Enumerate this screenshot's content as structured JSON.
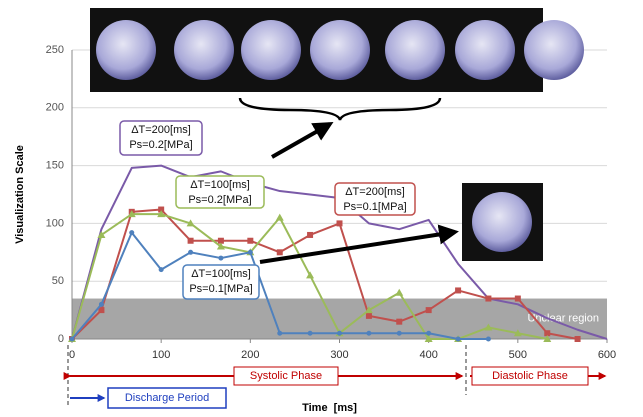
{
  "chart_data": {
    "type": "line",
    "xlabel": "Time  [ms]",
    "ylabel": "Visualization Scale",
    "xlim": [
      0,
      600
    ],
    "xticks": [
      0,
      100,
      200,
      300,
      400,
      500,
      600
    ],
    "ylim": [
      0,
      250
    ],
    "yticks": [
      0,
      50,
      100,
      150,
      200,
      250
    ],
    "grid": true,
    "x": [
      0,
      33,
      67,
      100,
      133,
      167,
      200,
      233,
      267,
      300,
      333,
      367,
      400,
      433,
      467,
      500,
      533,
      567,
      600
    ],
    "series": [
      {
        "labels": [
          "ΔT=200[ms]",
          "Ps=0.2[MPa]"
        ],
        "color": "#7a5aa8",
        "marker": "none",
        "values": [
          0,
          95,
          148,
          150,
          140,
          145,
          135,
          128,
          125,
          122,
          100,
          95,
          103,
          65,
          35,
          30,
          18,
          8,
          0
        ]
      },
      {
        "labels": [
          "ΔT=200[ms]",
          "Ps=0.1[MPa]"
        ],
        "color": "#c0504d",
        "marker": "square",
        "values": [
          0,
          25,
          110,
          112,
          85,
          85,
          85,
          75,
          90,
          100,
          20,
          15,
          25,
          42,
          35,
          35,
          5,
          0,
          null
        ]
      },
      {
        "labels": [
          "ΔT=100[ms]",
          "Ps=0.2[MPa]"
        ],
        "color": "#9bbb59",
        "marker": "triangle",
        "values": [
          0,
          90,
          108,
          108,
          100,
          80,
          75,
          105,
          55,
          5,
          25,
          40,
          0,
          0,
          10,
          5,
          0,
          null,
          null
        ]
      },
      {
        "labels": [
          "ΔT=100[ms]",
          "Ps=0.1[MPa]"
        ],
        "color": "#4f81bd",
        "marker": "circle",
        "values": [
          0,
          30,
          92,
          60,
          75,
          70,
          75,
          5,
          5,
          5,
          5,
          5,
          5,
          0,
          0,
          null,
          null,
          null,
          null
        ]
      }
    ],
    "unclear_region": {
      "label": "Unclear region",
      "range": [
        0,
        35
      ]
    },
    "phases": {
      "systolic": "Systolic Phase",
      "diastolic": "Diastolic Phase",
      "discharge": "Discharge Period"
    }
  }
}
